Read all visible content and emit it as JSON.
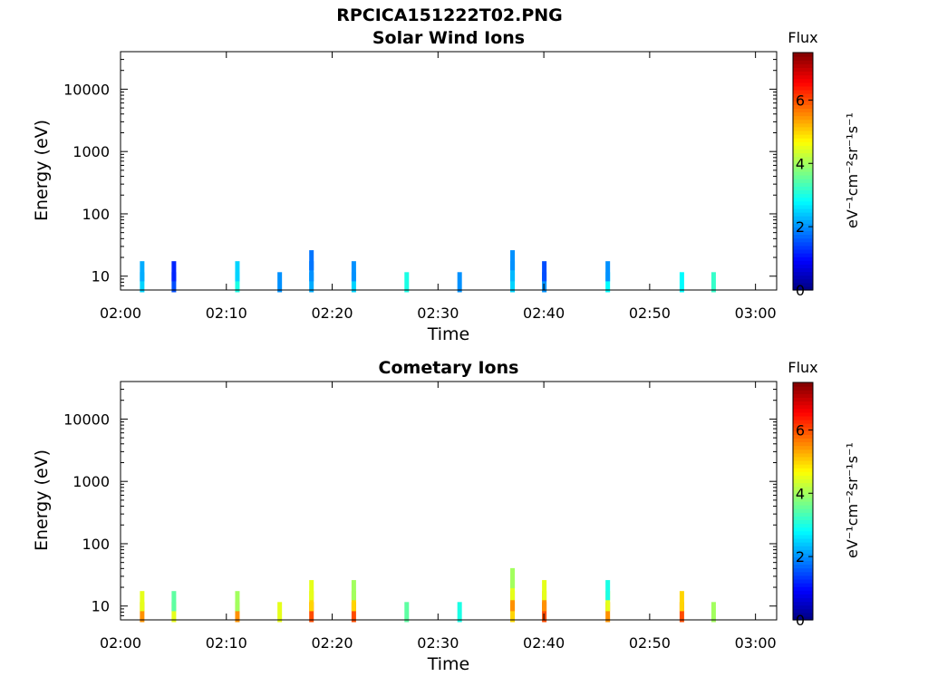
{
  "figure_title": "RPCICA151222T02.PNG",
  "chart_data": [
    {
      "type": "heatmap",
      "title": "Solar Wind Ions",
      "xlabel": "Time",
      "ylabel": "Energy (eV)",
      "yscale": "log",
      "xlim": [
        "02:00",
        "03:02"
      ],
      "ylim": [
        6,
        40000
      ],
      "xticks": [
        "02:00",
        "02:10",
        "02:20",
        "02:30",
        "02:40",
        "02:50",
        "03:00"
      ],
      "yticks": [
        10,
        100,
        1000,
        10000
      ],
      "colorbar": {
        "title": "Flux",
        "label": "eV⁻¹cm⁻²sr⁻¹s⁻¹",
        "range": [
          0,
          7.5
        ],
        "ticks": [
          0,
          2,
          4,
          6
        ],
        "colormap": "jet"
      },
      "cells": [
        {
          "t": "02:02",
          "e": 8,
          "v": 2.5
        },
        {
          "t": "02:02",
          "e": 12,
          "v": 2.2
        },
        {
          "t": "02:05",
          "e": 8,
          "v": 1.5
        },
        {
          "t": "02:05",
          "e": 12,
          "v": 1.2
        },
        {
          "t": "02:11",
          "e": 8,
          "v": 3.0
        },
        {
          "t": "02:11",
          "e": 12,
          "v": 2.5
        },
        {
          "t": "02:15",
          "e": 8,
          "v": 2.0
        },
        {
          "t": "02:18",
          "e": 8,
          "v": 2.2
        },
        {
          "t": "02:18",
          "e": 12,
          "v": 2.0
        },
        {
          "t": "02:18",
          "e": 18,
          "v": 1.8
        },
        {
          "t": "02:22",
          "e": 8,
          "v": 2.5
        },
        {
          "t": "02:22",
          "e": 12,
          "v": 2.0
        },
        {
          "t": "02:27",
          "e": 8,
          "v": 3.0
        },
        {
          "t": "02:32",
          "e": 8,
          "v": 2.0
        },
        {
          "t": "02:37",
          "e": 8,
          "v": 2.5
        },
        {
          "t": "02:37",
          "e": 12,
          "v": 2.3
        },
        {
          "t": "02:37",
          "e": 18,
          "v": 2.0
        },
        {
          "t": "02:40",
          "e": 8,
          "v": 2.0
        },
        {
          "t": "02:40",
          "e": 12,
          "v": 1.5
        },
        {
          "t": "02:46",
          "e": 8,
          "v": 2.8
        },
        {
          "t": "02:46",
          "e": 12,
          "v": 2.0
        },
        {
          "t": "02:53",
          "e": 8,
          "v": 2.8
        },
        {
          "t": "02:56",
          "e": 8,
          "v": 3.2
        }
      ]
    },
    {
      "type": "heatmap",
      "title": "Cometary Ions",
      "xlabel": "Time",
      "ylabel": "Energy (eV)",
      "yscale": "log",
      "xlim": [
        "02:00",
        "03:02"
      ],
      "ylim": [
        6,
        40000
      ],
      "xticks": [
        "02:00",
        "02:10",
        "02:20",
        "02:30",
        "02:40",
        "02:50",
        "03:00"
      ],
      "yticks": [
        10,
        100,
        1000,
        10000
      ],
      "colorbar": {
        "title": "Flux",
        "label": "eV⁻¹cm⁻²sr⁻¹s⁻¹",
        "range": [
          0,
          7.5
        ],
        "ticks": [
          0,
          2,
          4,
          6
        ],
        "colormap": "jet"
      },
      "cells": [
        {
          "t": "02:02",
          "e": 8,
          "v": 5.5
        },
        {
          "t": "02:02",
          "e": 12,
          "v": 4.5
        },
        {
          "t": "02:05",
          "e": 8,
          "v": 4.5
        },
        {
          "t": "02:05",
          "e": 12,
          "v": 3.5
        },
        {
          "t": "02:11",
          "e": 8,
          "v": 5.5
        },
        {
          "t": "02:11",
          "e": 12,
          "v": 4.0
        },
        {
          "t": "02:15",
          "e": 8,
          "v": 4.5
        },
        {
          "t": "02:18",
          "e": 8,
          "v": 6.0
        },
        {
          "t": "02:18",
          "e": 12,
          "v": 5.0
        },
        {
          "t": "02:18",
          "e": 18,
          "v": 4.5
        },
        {
          "t": "02:22",
          "e": 8,
          "v": 6.0
        },
        {
          "t": "02:22",
          "e": 12,
          "v": 5.0
        },
        {
          "t": "02:22",
          "e": 18,
          "v": 4.0
        },
        {
          "t": "02:27",
          "e": 8,
          "v": 3.5
        },
        {
          "t": "02:32",
          "e": 8,
          "v": 3.0
        },
        {
          "t": "02:37",
          "e": 8,
          "v": 5.0
        },
        {
          "t": "02:37",
          "e": 12,
          "v": 5.5
        },
        {
          "t": "02:37",
          "e": 18,
          "v": 4.5
        },
        {
          "t": "02:37",
          "e": 28,
          "v": 4.0
        },
        {
          "t": "02:40",
          "e": 8,
          "v": 6.0
        },
        {
          "t": "02:40",
          "e": 12,
          "v": 5.5
        },
        {
          "t": "02:40",
          "e": 18,
          "v": 4.5
        },
        {
          "t": "02:46",
          "e": 8,
          "v": 5.5
        },
        {
          "t": "02:46",
          "e": 12,
          "v": 4.5
        },
        {
          "t": "02:46",
          "e": 18,
          "v": 3.0
        },
        {
          "t": "02:53",
          "e": 8,
          "v": 6.0
        },
        {
          "t": "02:53",
          "e": 12,
          "v": 5.0
        },
        {
          "t": "02:56",
          "e": 8,
          "v": 4.0
        }
      ]
    }
  ]
}
